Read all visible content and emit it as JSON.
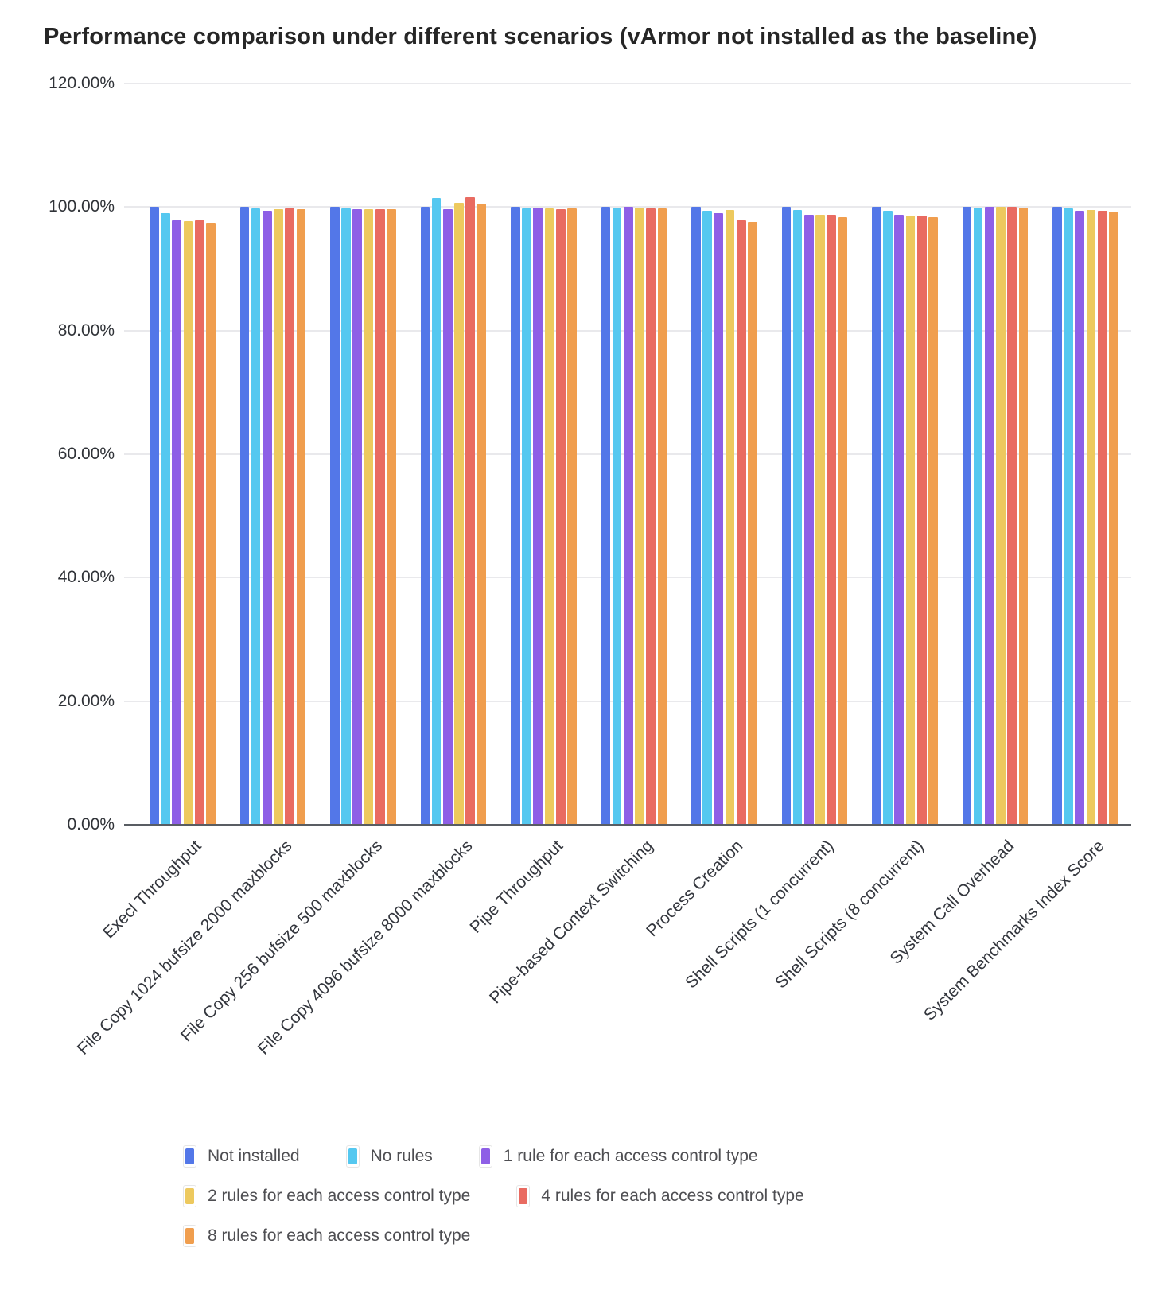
{
  "chart_data": {
    "type": "bar",
    "title": "Performance comparison under different scenarios (vArmor not installed as the baseline)",
    "xlabel": "",
    "ylabel": "",
    "ylim": [
      0,
      120
    ],
    "grid": true,
    "legend_position": "bottom",
    "y_ticks": [
      {
        "value": 0,
        "label": "0.00%"
      },
      {
        "value": 20,
        "label": "20.00%"
      },
      {
        "value": 40,
        "label": "40.00%"
      },
      {
        "value": 60,
        "label": "60.00%"
      },
      {
        "value": 80,
        "label": "80.00%"
      },
      {
        "value": 100,
        "label": "100.00%"
      },
      {
        "value": 120,
        "label": "120.00%"
      }
    ],
    "categories": [
      "Execl Throughput",
      "File Copy 1024 bufsize 2000 maxblocks",
      "File Copy 256 bufsize 500 maxblocks",
      "File Copy 4096 bufsize 8000 maxblocks",
      "Pipe Throughput",
      "Pipe-based Context Switching",
      "Process Creation",
      "Shell Scripts (1 concurrent)",
      "Shell Scripts (8 concurrent)",
      "System Call Overhead",
      "System Benchmarks Index Score"
    ],
    "series": [
      {
        "name": "Not installed",
        "color": "#5377E8",
        "values": [
          100.0,
          100.0,
          100.0,
          100.0,
          100.0,
          100.0,
          100.0,
          100.0,
          100.0,
          100.0,
          100.0
        ]
      },
      {
        "name": "No rules",
        "color": "#55C8F0",
        "values": [
          99.0,
          99.8,
          99.8,
          101.4,
          99.8,
          99.9,
          99.4,
          99.5,
          99.4,
          99.9,
          99.8
        ]
      },
      {
        "name": "1 rule for each access control type",
        "color": "#8E5FE6",
        "values": [
          97.9,
          99.4,
          99.6,
          99.7,
          99.9,
          100.0,
          99.0,
          98.8,
          98.7,
          100.0,
          99.4
        ]
      },
      {
        "name": "2 rules for each access control type",
        "color": "#EDC95E",
        "values": [
          97.7,
          99.7,
          99.7,
          100.7,
          99.8,
          99.9,
          99.5,
          98.8,
          98.6,
          100.0,
          99.5
        ]
      },
      {
        "name": "4 rules for each access control type",
        "color": "#E96B61",
        "values": [
          97.8,
          99.8,
          99.7,
          101.6,
          99.7,
          99.8,
          97.9,
          98.7,
          98.6,
          100.1,
          99.4
        ]
      },
      {
        "name": "8 rules for each access control type",
        "color": "#F09E4E",
        "values": [
          97.3,
          99.6,
          99.6,
          100.6,
          99.8,
          99.8,
          97.6,
          98.4,
          98.4,
          99.9,
          99.3
        ]
      }
    ]
  }
}
